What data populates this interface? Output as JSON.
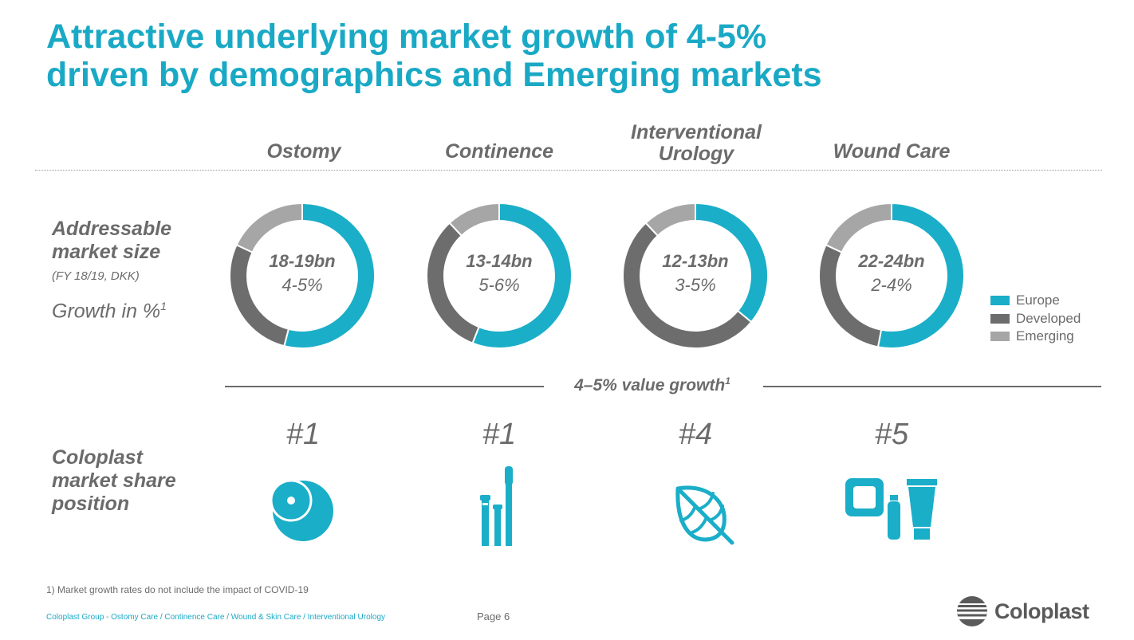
{
  "title": {
    "line1": "Attractive underlying market growth of 4-5%",
    "line2": "driven by demographics and Emerging markets"
  },
  "columns": [
    {
      "line1": "Ostomy",
      "line2": ""
    },
    {
      "line1": "Continence",
      "line2": ""
    },
    {
      "line1": "Interventional",
      "line2": "Urology"
    },
    {
      "line1": "Wound Care",
      "line2": ""
    }
  ],
  "row_labels": {
    "addressable_line1": "Addressable",
    "addressable_line2": "market size",
    "addressable_note": "(FY 18/19, DKK)",
    "growth": "Growth in %",
    "growth_sup": "1",
    "share_line1": "Coloplast",
    "share_line2": "market share",
    "share_line3": "position"
  },
  "colors": {
    "europe": "#1aaec8",
    "developed": "#6d6d6d",
    "emerging": "#a6a6a6",
    "accent": "#1aa9c5"
  },
  "chart_data": {
    "type": "pie",
    "donut": true,
    "series_names": [
      "Europe",
      "Developed",
      "Emerging"
    ],
    "legend_position": "right",
    "charts": [
      {
        "category": "Ostomy",
        "size_label": "18-19bn",
        "growth_label": "4-5%",
        "values": [
          0.54,
          0.28,
          0.18
        ]
      },
      {
        "category": "Continence",
        "size_label": "13-14bn",
        "growth_label": "5-6%",
        "values": [
          0.56,
          0.32,
          0.12
        ]
      },
      {
        "category": "Interventional Urology",
        "size_label": "12-13bn",
        "growth_label": "3-5%",
        "values": [
          0.36,
          0.52,
          0.12
        ]
      },
      {
        "category": "Wound Care",
        "size_label": "22-24bn",
        "growth_label": "2-4%",
        "values": [
          0.53,
          0.29,
          0.18
        ]
      }
    ]
  },
  "value_growth": {
    "text": "4–5% value growth",
    "sup": "1"
  },
  "ranks": [
    "#1",
    "#1",
    "#4",
    "#5"
  ],
  "icons": [
    "ostomy-bag-icon",
    "catheter-icon",
    "leaf-icon",
    "wound-care-products-icon"
  ],
  "footnote": "1) Market growth rates do not include the impact of COVID-19",
  "footer_path": "Coloplast Group - Ostomy Care / Continence Care / Wound & Skin Care / Interventional Urology",
  "page_label": "Page 6",
  "logo_text": "Coloplast"
}
